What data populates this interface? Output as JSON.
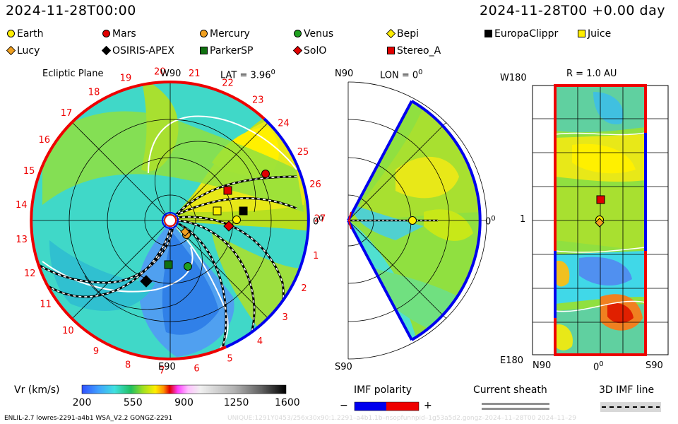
{
  "header": {
    "datetime": "2024-11-28T00:00",
    "run_time": "2024-11-28T00 +0.00 day"
  },
  "legend": [
    {
      "label": "Earth",
      "shape": "circle",
      "color": "#ffee00"
    },
    {
      "label": "Mars",
      "shape": "circle",
      "color": "#e00000"
    },
    {
      "label": "Mercury",
      "shape": "circle",
      "color": "#f0a020"
    },
    {
      "label": "Venus",
      "shape": "circle",
      "color": "#20a020"
    },
    {
      "label": "Bepi",
      "shape": "diamond",
      "color": "#ffee00"
    },
    {
      "label": "EuropaClippr",
      "shape": "square",
      "color": "#000000"
    },
    {
      "label": "Juice",
      "shape": "square",
      "color": "#ffee00"
    },
    {
      "label": "Lucy",
      "shape": "diamond",
      "color": "#f0a020"
    },
    {
      "label": "OSIRIS-APEX",
      "shape": "diamond",
      "color": "#000000"
    },
    {
      "label": "ParkerSP",
      "shape": "square",
      "color": "#107010"
    },
    {
      "label": "SolO",
      "shape": "diamond",
      "color": "#e00000"
    },
    {
      "label": "Stereo_A",
      "shape": "square",
      "color": "#e00000"
    }
  ],
  "ecliptic": {
    "title": "Ecliptic Plane",
    "lat": "LAT = 3.96",
    "deg": "0",
    "top_label": "W90",
    "bottom_label": "E90",
    "right_label": "0",
    "right_deg": "0",
    "sectors": [
      "1",
      "2",
      "3",
      "4",
      "5",
      "6",
      "7",
      "8",
      "9",
      "10",
      "11",
      "12",
      "13",
      "14",
      "15",
      "16",
      "17",
      "18",
      "19",
      "20",
      "21",
      "22",
      "23",
      "24",
      "25",
      "26",
      "27"
    ]
  },
  "meridional": {
    "lon": "LON = 0",
    "deg": "0",
    "top_label": "N90",
    "bottom_label": "S90",
    "right_label": "0",
    "right_deg": "0"
  },
  "map": {
    "title": "R = 1.0 AU",
    "top_left": "W180",
    "bottom_left": "E180",
    "mid_left": "1",
    "x_left": "N90",
    "x_mid": "0",
    "x_mid_deg": "0",
    "x_right": "S90"
  },
  "colorbar": {
    "label": "Vr (km/s)",
    "ticks": [
      "200",
      "550",
      "900",
      "1250",
      "1600"
    ],
    "range": [
      200,
      1600
    ]
  },
  "imf": {
    "title": "IMF polarity",
    "minus": "−",
    "plus": "+",
    "sheath": "Current sheath",
    "line3d": "3D IMF line"
  },
  "footer": {
    "model": "ENLIL-2.7 lowres-2291-a4b1 WSA_V2.2 GONGZ-2291",
    "right": "UNIQUE:1291Y0453/256x30x90:1.2291–a4b1.1b–nsopfunnpid–1g53a5d2.gongz–2024–11–28T00   2024–11–29"
  },
  "colors": {
    "red": "#ee0000",
    "blue": "#0000ee"
  }
}
